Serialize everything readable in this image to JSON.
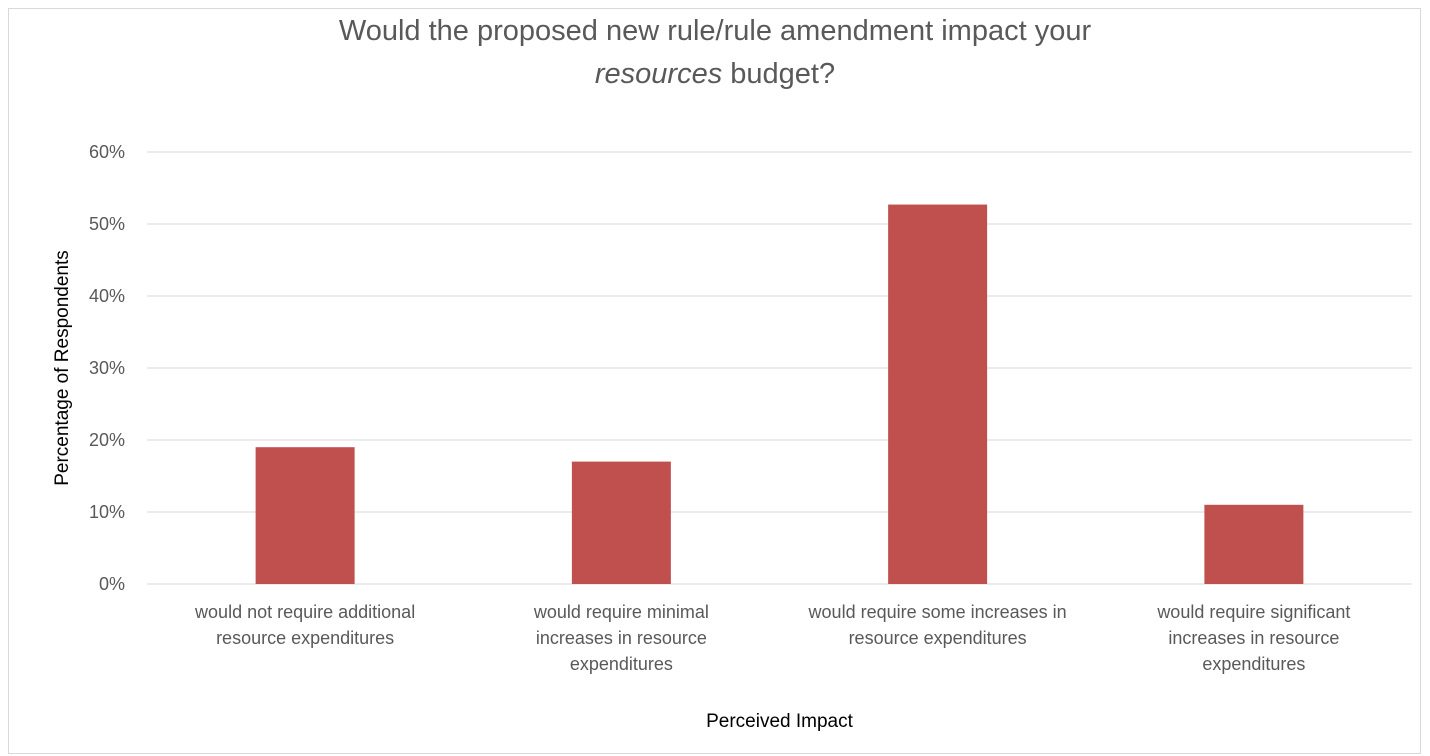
{
  "chart_data": {
    "type": "bar",
    "title_main": "Would the proposed new rule/rule amendment impact your",
    "title_italic": "resources",
    "title_tail": " budget?",
    "categories": [
      [
        "would not require additional",
        "resource expenditures"
      ],
      [
        "would require minimal",
        "increases in resource",
        "expenditures"
      ],
      [
        "would require some increases in",
        "resource expenditures"
      ],
      [
        "would require significant",
        "increases in resource",
        "expenditures"
      ]
    ],
    "values": [
      19,
      17,
      52.7,
      11
    ],
    "xlabel": "Perceived Impact",
    "ylabel": "Percentage of Respondents",
    "ylim": [
      0,
      60
    ],
    "yticks": [
      "0%",
      "10%",
      "20%",
      "30%",
      "40%",
      "50%",
      "60%"
    ],
    "bar_color": "#c0504d",
    "grid": true
  }
}
